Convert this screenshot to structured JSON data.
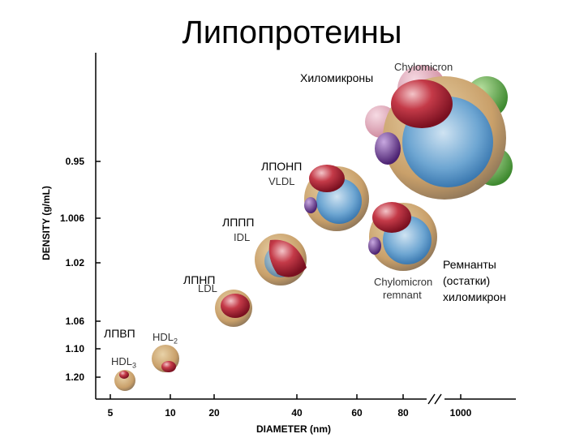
{
  "title": "Липопротеины",
  "axes": {
    "y_title": "DENSITY (g/mL)",
    "y_ticks": [
      "0.95",
      "1.006",
      "1.02",
      "1.06",
      "1.10",
      "1.20"
    ],
    "x_title": "DIAMETER (nm)",
    "x_ticks": [
      "5",
      "10",
      "20",
      "40",
      "60",
      "80",
      "1000"
    ]
  },
  "particles": {
    "hdl3": {
      "ru": "ЛПВП",
      "en": "HDL",
      "en_sub": "3"
    },
    "hdl2": {
      "en": "HDL",
      "en_sub": "2"
    },
    "ldl": {
      "ru": "ЛПНП",
      "en": "LDL"
    },
    "idl": {
      "ru": "ЛППП",
      "en": "IDL"
    },
    "vldl": {
      "ru": "ЛПОНП",
      "en": "VLDL"
    },
    "chylomicron": {
      "ru": "Хиломикроны",
      "en": "Chylomicron"
    },
    "remnant": {
      "en_line1": "Chylomicron",
      "en_line2": "remnant",
      "ru_line1": "Ремнанты",
      "ru_line2": "(остатки)",
      "ru_line3": "хиломикрон"
    }
  },
  "colors": {
    "shell": "#c9a06a",
    "core": "#3a7db5",
    "apo_red": "#b02030",
    "apo_purple": "#6a3a8a",
    "apo_green": "#5aa040",
    "apo_pink": "#d890a8"
  }
}
